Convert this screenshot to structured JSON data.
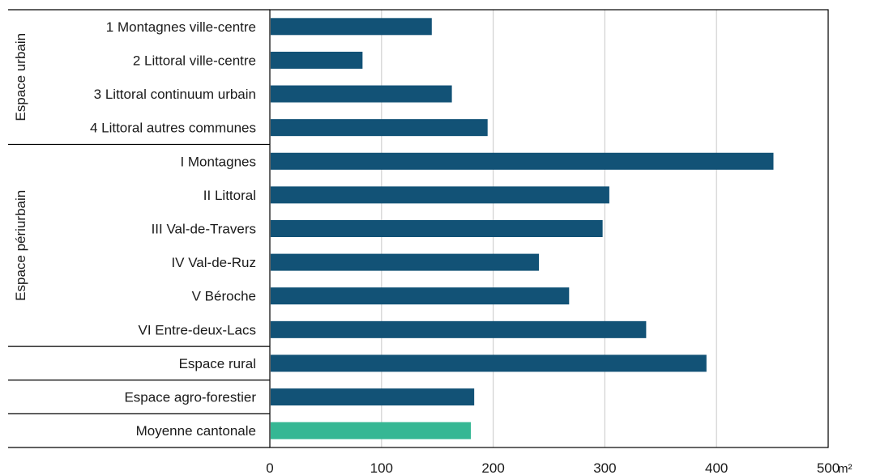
{
  "chart_data": {
    "type": "bar",
    "orientation": "horizontal",
    "categories": [
      "1 Montagnes ville-centre",
      "2 Littoral ville-centre",
      "3 Littoral continuum urbain",
      "4 Littoral autres communes",
      "I Montagnes",
      "II Littoral",
      "III Val-de-Travers",
      "IV Val-de-Ruz",
      "V Béroche",
      "VI Entre-deux-Lacs",
      "Espace rural",
      "Espace agro-forestier",
      "Moyenne cantonale"
    ],
    "values": [
      145,
      83,
      163,
      195,
      451,
      304,
      298,
      241,
      268,
      337,
      391,
      183,
      180
    ],
    "highlight_category": "Moyenne cantonale",
    "colors": {
      "bar": "#125276",
      "highlight": "#36b794",
      "grid": "#d0d0d0",
      "axis": "#000000"
    },
    "groups": [
      {
        "label": "Espace urbain",
        "start": 0,
        "end": 3
      },
      {
        "label": "Espace périurbain",
        "start": 4,
        "end": 9
      },
      {
        "label": "",
        "start": 10,
        "end": 10
      },
      {
        "label": "",
        "start": 11,
        "end": 11
      },
      {
        "label": "",
        "start": 12,
        "end": 12
      }
    ],
    "xlim": [
      0,
      500
    ],
    "xticks": [
      0,
      100,
      200,
      300,
      400,
      500
    ],
    "x_unit": "m²",
    "grid": true,
    "title": "",
    "xlabel": "",
    "ylabel": ""
  }
}
